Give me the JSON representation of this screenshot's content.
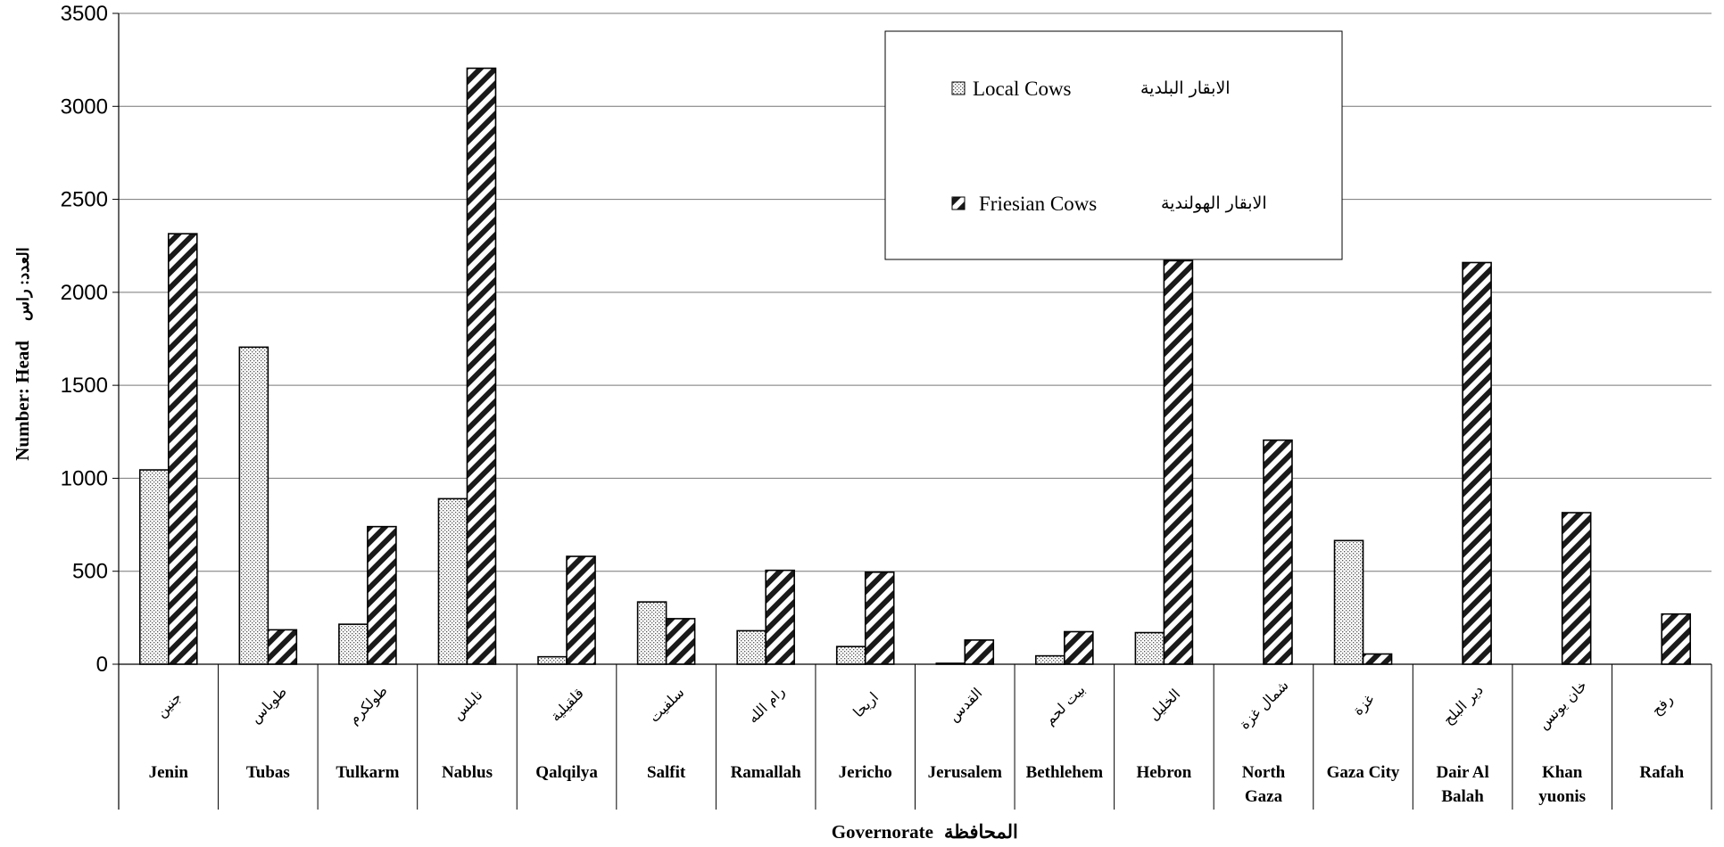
{
  "chart_data": {
    "type": "bar",
    "categories": [
      "Jenin",
      "Tubas",
      "Tulkarm",
      "Nablus",
      "Qalqilya",
      "Salfit",
      "Ramallah",
      "Jericho",
      "Jerusalem",
      "Bethlehem",
      "Hebron",
      "North Gaza",
      "Gaza City",
      "Dair Al Balah",
      "Khan yuonis",
      "Rafah"
    ],
    "categories_ar": [
      "جنين",
      "طوباس",
      "طولكرم",
      "نابلس",
      "قلقيلية",
      "سلفيت",
      "رام الله",
      "اريحا",
      "القدس",
      "بيت لحم",
      "الخليل",
      "شمال غزة",
      "غزة",
      "دير البلح",
      "خان يونس",
      "رفح"
    ],
    "series": [
      {
        "name": "Local Cows",
        "name_ar": "الابقار البلدية",
        "pattern": "dots",
        "values": [
          1045,
          1705,
          215,
          890,
          40,
          335,
          180,
          95,
          5,
          45,
          170,
          0,
          665,
          0,
          0,
          0
        ]
      },
      {
        "name": "Friesian Cows",
        "name_ar": "الابقار الهولندية",
        "pattern": "diagonal",
        "values": [
          2315,
          185,
          740,
          3205,
          580,
          245,
          505,
          495,
          130,
          175,
          2170,
          1205,
          55,
          2160,
          815,
          270
        ]
      }
    ],
    "xlabel": "Governorate",
    "xlabel_ar": "المحافظة",
    "ylabel": "Number: Head",
    "ylabel_ar": "العدد: راس",
    "ylim": [
      0,
      3500
    ],
    "yticks": [
      0,
      500,
      1000,
      1500,
      2000,
      2500,
      3000,
      3500
    ],
    "grid": true,
    "legend_position": "top-right"
  }
}
